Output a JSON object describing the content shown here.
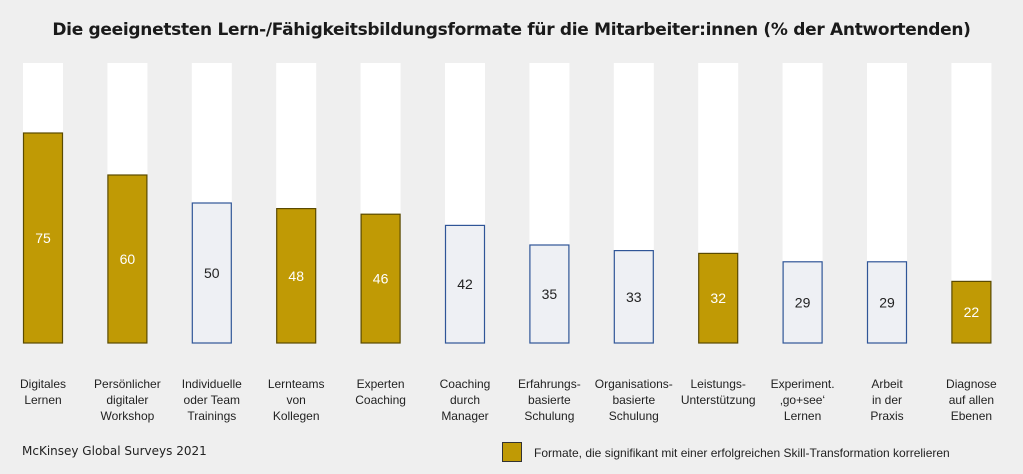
{
  "chart_data": {
    "type": "bar",
    "title": "Die geeignetsten Lern-/Fähigkeitsbildungsformate für die Mitarbeiter:innen (% der Antwortenden)",
    "categories": [
      "Digitales\nLernen",
      "Persönlicher\ndigitaler\nWorkshop",
      "Individuelle\noder Team\nTrainings",
      "Lernteams\nvon\nKollegen",
      "Experten\nCoaching",
      "Coaching\ndurch\nManager",
      "Erfahrungs-\nbasierte\nSchulung",
      "Organisations-\nbasierte\nSchulung",
      "Leistungs-\nUnterstützung",
      "Experiment.\n‚go+see‘\nLernen",
      "Arbeit\nin der\nPraxis",
      "Diagnose\nauf allen\nEbenen"
    ],
    "values": [
      75,
      60,
      50,
      48,
      46,
      42,
      35,
      33,
      32,
      29,
      29,
      22
    ],
    "significant": [
      true,
      true,
      false,
      true,
      true,
      false,
      false,
      false,
      true,
      false,
      false,
      true
    ],
    "ylim": [
      0,
      100
    ],
    "legend": {
      "label": "Formate, die signifikant mit einer erfolgreichen Skill-Transformation korrelieren",
      "placement": "bottom-right"
    },
    "colors": {
      "significant_fill": "#c09a05",
      "significant_border": "#5a4a00",
      "other_fill": "#eef0f4",
      "other_border": "#2f5597",
      "background_bar": "#ffffff"
    }
  },
  "source": "McKinsey Global Surveys 2021"
}
